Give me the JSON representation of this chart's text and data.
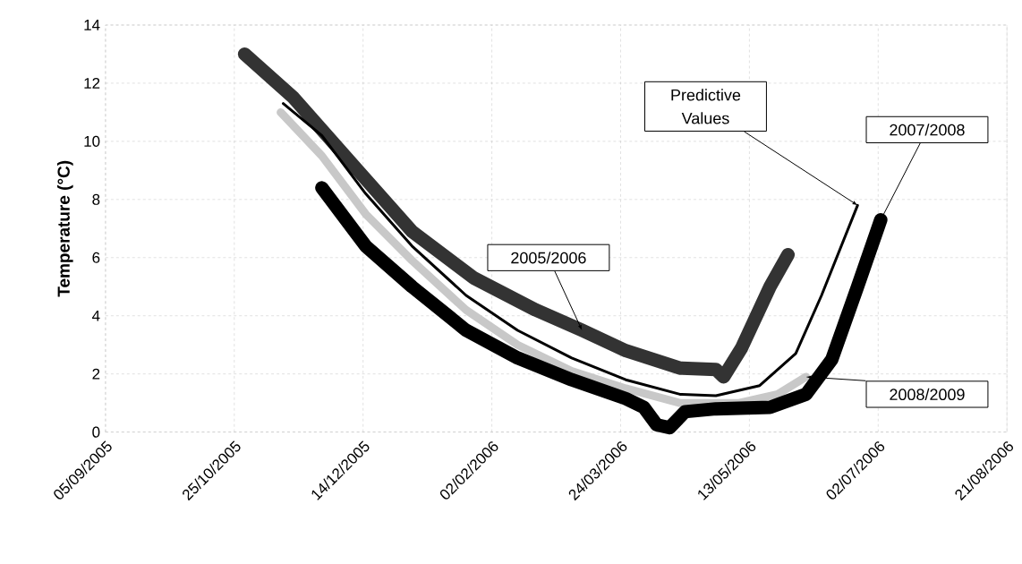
{
  "chart_data": {
    "type": "line",
    "ylabel": "Temperature (°C)",
    "grid": true,
    "xlim": [
      "2005-09-05",
      "2006-08-21"
    ],
    "ylim": [
      0,
      14
    ],
    "yticks": [
      0,
      2,
      4,
      6,
      8,
      10,
      12,
      14
    ],
    "xticks": [
      {
        "value": "2005-09-05",
        "label": "05/09/2005"
      },
      {
        "value": "2005-10-25",
        "label": "25/10/2005"
      },
      {
        "value": "2005-12-14",
        "label": "14/12/2005"
      },
      {
        "value": "2006-02-02",
        "label": "02/02/2006"
      },
      {
        "value": "2006-03-24",
        "label": "24/03/2006"
      },
      {
        "value": "2006-05-13",
        "label": "13/05/2006"
      },
      {
        "value": "2006-07-02",
        "label": "02/07/2006"
      },
      {
        "value": "2006-08-21",
        "label": "21/08/2006"
      }
    ],
    "series": [
      {
        "name": "2005/2006",
        "color": "#333333",
        "x": [
          "2005-10-29",
          "2005-11-17",
          "2005-12-12",
          "2006-01-02",
          "2006-01-26",
          "2006-02-19",
          "2006-03-09",
          "2006-03-26",
          "2006-04-16",
          "2006-04-30",
          "2006-05-03",
          "2006-05-10",
          "2006-05-21",
          "2006-05-28"
        ],
        "values": [
          13.0,
          11.5,
          9.0,
          6.9,
          5.3,
          4.2,
          3.5,
          2.8,
          2.2,
          2.15,
          1.9,
          2.9,
          5.0,
          6.1
        ]
      },
      {
        "name": "2008/2009",
        "color": "#c8c8c8",
        "x": [
          "2005-11-12",
          "2005-11-28",
          "2005-12-15",
          "2006-01-02",
          "2006-01-23",
          "2006-02-12",
          "2006-03-05",
          "2006-03-26",
          "2006-04-16",
          "2006-05-09",
          "2006-05-24",
          "2006-06-04"
        ],
        "values": [
          11.0,
          9.5,
          7.5,
          5.9,
          4.2,
          3.0,
          2.1,
          1.5,
          1.0,
          1.0,
          1.3,
          1.9
        ]
      },
      {
        "name": "2007/2008",
        "color": "#000000",
        "x": [
          "2005-11-28",
          "2005-12-15",
          "2006-01-02",
          "2006-01-23",
          "2006-02-12",
          "2006-03-05",
          "2006-03-26",
          "2006-04-02",
          "2006-04-07",
          "2006-04-12",
          "2006-04-18",
          "2006-04-30",
          "2006-05-21",
          "2006-06-04",
          "2006-06-14",
          "2006-06-24",
          "2006-07-03"
        ],
        "values": [
          8.4,
          6.4,
          5.0,
          3.5,
          2.55,
          1.8,
          1.15,
          0.85,
          0.25,
          0.15,
          0.7,
          0.8,
          0.85,
          1.3,
          2.5,
          5.0,
          7.3
        ]
      },
      {
        "name": "Predictive Values",
        "color": "#000000",
        "x": [
          "2005-11-13",
          "2005-11-28",
          "2005-12-15",
          "2006-01-02",
          "2006-01-23",
          "2006-02-12",
          "2006-03-05",
          "2006-03-26",
          "2006-04-16",
          "2006-04-30",
          "2006-05-17",
          "2006-05-31",
          "2006-06-10",
          "2006-06-24"
        ],
        "values": [
          11.3,
          10.2,
          8.2,
          6.4,
          4.7,
          3.5,
          2.55,
          1.8,
          1.3,
          1.25,
          1.6,
          2.7,
          4.7,
          7.8
        ]
      }
    ]
  }
}
